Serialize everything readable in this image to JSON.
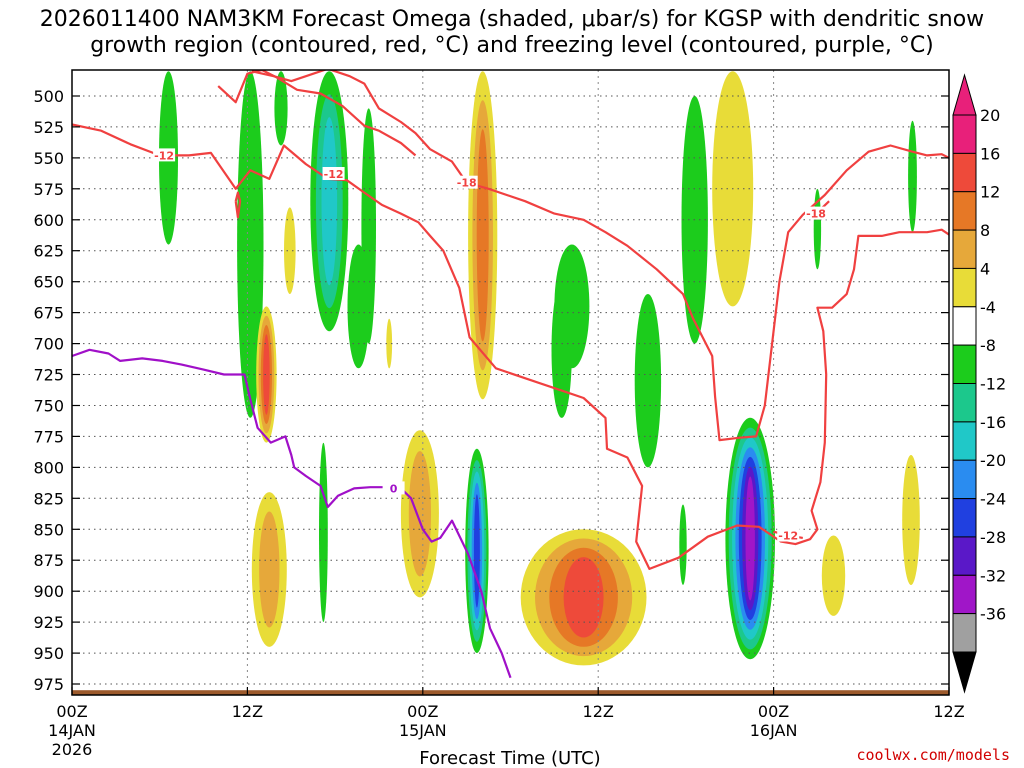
{
  "title_line1": "2026011400 NAM3KM Forecast Omega (shaded, μbar/s) for KGSP with dendritic snow",
  "title_line2": "growth region (contoured, red, °C) and freezing level (contoured, purple, °C)",
  "credit": "coolwx.com/models",
  "chart_data": {
    "type": "heatmap",
    "title": "2026011400 NAM3KM Forecast Omega (shaded, μbar/s) for KGSP with dendritic snow growth region (contoured, red, °C) and freezing level (contoured, purple, °C)",
    "xlabel": "Forecast Time (UTC)",
    "ylabel": "",
    "xlim": [
      0,
      60
    ],
    "ylim": [
      985,
      480
    ],
    "x_ticks": [
      {
        "hour": 0,
        "label": "00Z",
        "sub1": "14JAN",
        "sub2": "2026"
      },
      {
        "hour": 12,
        "label": "12Z",
        "sub1": "",
        "sub2": ""
      },
      {
        "hour": 24,
        "label": "00Z",
        "sub1": "15JAN",
        "sub2": ""
      },
      {
        "hour": 36,
        "label": "12Z",
        "sub1": "",
        "sub2": ""
      },
      {
        "hour": 48,
        "label": "00Z",
        "sub1": "16JAN",
        "sub2": ""
      },
      {
        "hour": 60,
        "label": "12Z",
        "sub1": "",
        "sub2": ""
      }
    ],
    "y_ticks": [
      500,
      525,
      550,
      575,
      600,
      625,
      650,
      675,
      700,
      725,
      750,
      775,
      800,
      825,
      850,
      875,
      900,
      925,
      950,
      975
    ],
    "colorbar": {
      "labels": [
        "20",
        "16",
        "12",
        "8",
        "4",
        "-4",
        "-8",
        "-12",
        "-16",
        "-20",
        "-24",
        "-28",
        "-32",
        "-36"
      ],
      "bins": [
        {
          "lo": 20,
          "hi": 24,
          "color": "#e8207a"
        },
        {
          "lo": 16,
          "hi": 20,
          "color": "#ee4a3a"
        },
        {
          "lo": 12,
          "hi": 16,
          "color": "#e67826"
        },
        {
          "lo": 8,
          "hi": 12,
          "color": "#e6a83a"
        },
        {
          "lo": 4,
          "hi": 8,
          "color": "#e8dc38"
        },
        {
          "lo": -4,
          "hi": 4,
          "color": "#ffffff"
        },
        {
          "lo": -8,
          "hi": -4,
          "color": "#1ccc1c"
        },
        {
          "lo": -12,
          "hi": -8,
          "color": "#1cc88c"
        },
        {
          "lo": -16,
          "hi": -12,
          "color": "#20c8c8"
        },
        {
          "lo": -20,
          "hi": -16,
          "color": "#2a8cf0"
        },
        {
          "lo": -24,
          "hi": -20,
          "color": "#2040e0"
        },
        {
          "lo": -28,
          "hi": -24,
          "color": "#5a18c8"
        },
        {
          "lo": -32,
          "hi": -28,
          "color": "#a016c8"
        },
        {
          "lo": -36,
          "hi": -32,
          "color": "#a0a0a0"
        }
      ],
      "colors": {
        "bottom_arrow": "#000000",
        "top_arrow": "#e8207a"
      }
    },
    "omega_regions": [
      {
        "name": "ascent-14jan-06z",
        "hour": 6.6,
        "p_top": 480,
        "p_bottom": 620,
        "width_h": 1.3,
        "levels": [
          -4
        ]
      },
      {
        "name": "ascent-14jan-12z-upper",
        "hour": 12.2,
        "p_top": 480,
        "p_bottom": 760,
        "width_h": 1.8,
        "levels": [
          -4
        ]
      },
      {
        "name": "ascent-14jan-15z",
        "hour": 14.3,
        "p_top": 480,
        "p_bottom": 540,
        "width_h": 0.9,
        "levels": [
          -4
        ]
      },
      {
        "name": "ascent-14jan-18z",
        "hour": 17.6,
        "p_top": 480,
        "p_bottom": 690,
        "width_h": 2.6,
        "levels": [
          -4,
          -8,
          -12
        ]
      },
      {
        "name": "ascent-14jan-20z",
        "hour": 20.3,
        "p_top": 510,
        "p_bottom": 700,
        "width_h": 1.0,
        "levels": [
          -4
        ]
      },
      {
        "name": "ascent-14jan-22z",
        "hour": 19.6,
        "p_top": 620,
        "p_bottom": 720,
        "width_h": 1.5,
        "levels": [
          -4
        ]
      },
      {
        "name": "descent-14jan-13z",
        "hour": 13.3,
        "p_top": 670,
        "p_bottom": 780,
        "width_h": 1.4,
        "levels": [
          4,
          8,
          12,
          16
        ]
      },
      {
        "name": "descent-14jan-13z-low",
        "hour": 13.5,
        "p_top": 820,
        "p_bottom": 945,
        "width_h": 2.4,
        "levels": [
          4,
          8
        ]
      },
      {
        "name": "descent-14jan-15z",
        "hour": 14.9,
        "p_top": 590,
        "p_bottom": 660,
        "width_h": 0.8,
        "levels": [
          4
        ]
      },
      {
        "name": "descent-14jan-21z",
        "hour": 21.7,
        "p_top": 680,
        "p_bottom": 720,
        "width_h": 0.4,
        "levels": [
          4
        ]
      },
      {
        "name": "ascent-14jan-17z-low",
        "hour": 17.2,
        "p_top": 780,
        "p_bottom": 925,
        "width_h": 0.6,
        "levels": [
          -4
        ]
      },
      {
        "name": "descent-15jan-00z",
        "hour": 23.8,
        "p_top": 770,
        "p_bottom": 905,
        "width_h": 2.6,
        "levels": [
          4,
          8
        ]
      },
      {
        "name": "descent-15jan-04z",
        "hour": 28.1,
        "p_top": 480,
        "p_bottom": 745,
        "width_h": 2.0,
        "levels": [
          4,
          8,
          12
        ]
      },
      {
        "name": "ascent-15jan-05z-low",
        "hour": 27.7,
        "p_top": 785,
        "p_bottom": 950,
        "width_h": 1.6,
        "levels": [
          -4,
          -8,
          -12,
          -16,
          -20
        ]
      },
      {
        "name": "descent-15jan-12z",
        "hour": 35.0,
        "p_top": 850,
        "p_bottom": 960,
        "width_h": 8.6,
        "levels": [
          4,
          8,
          12,
          16
        ]
      },
      {
        "name": "ascent-15jan-10z",
        "hour": 34.2,
        "p_top": 620,
        "p_bottom": 720,
        "width_h": 2.4,
        "levels": [
          -4
        ]
      },
      {
        "name": "ascent-15jan-10z-mid",
        "hour": 33.5,
        "p_top": 650,
        "p_bottom": 760,
        "width_h": 1.4,
        "levels": [
          -4
        ]
      },
      {
        "name": "ascent-15jan-15z",
        "hour": 39.4,
        "p_top": 660,
        "p_bottom": 800,
        "width_h": 1.8,
        "levels": [
          -4
        ]
      },
      {
        "name": "ascent-15jan-19z",
        "hour": 42.6,
        "p_top": 500,
        "p_bottom": 700,
        "width_h": 1.8,
        "levels": [
          -4
        ]
      },
      {
        "name": "descent-15jan-22z",
        "hour": 45.2,
        "p_top": 480,
        "p_bottom": 670,
        "width_h": 2.8,
        "levels": [
          4
        ]
      },
      {
        "name": "ascent-15jan-23z-low",
        "hour": 46.4,
        "p_top": 760,
        "p_bottom": 955,
        "width_h": 3.4,
        "levels": [
          -4,
          -8,
          -12,
          -16,
          -20,
          -24,
          -28
        ]
      },
      {
        "name": "ascent-15jan-18z-low",
        "hour": 41.8,
        "p_top": 830,
        "p_bottom": 895,
        "width_h": 0.5,
        "levels": [
          -4
        ]
      },
      {
        "name": "ascent-16jan-03z",
        "hour": 51.0,
        "p_top": 575,
        "p_bottom": 640,
        "width_h": 0.5,
        "levels": [
          -4
        ]
      },
      {
        "name": "descent-16jan-04z",
        "hour": 52.1,
        "p_top": 855,
        "p_bottom": 920,
        "width_h": 1.6,
        "levels": [
          4
        ]
      },
      {
        "name": "ascent-16jan-09z",
        "hour": 57.5,
        "p_top": 520,
        "p_bottom": 610,
        "width_h": 0.6,
        "levels": [
          -4
        ]
      },
      {
        "name": "descent-16jan-09z",
        "hour": 57.4,
        "p_top": 790,
        "p_bottom": 895,
        "width_h": 1.2,
        "levels": [
          4
        ]
      }
    ],
    "terrain": {
      "surface_pressure_mb": 980,
      "color": "#9c5a2c"
    },
    "contours": [
      {
        "name": "dgz-minus-12-west",
        "color": "#f04040",
        "label": "-12",
        "label_point": [
          6.3,
          548
        ],
        "points": [
          [
            0,
            523
          ],
          [
            2,
            528
          ],
          [
            4,
            539
          ],
          [
            6,
            548
          ],
          [
            8,
            548
          ],
          [
            9.5,
            546
          ],
          [
            11.2,
            575
          ],
          [
            12.2,
            560
          ],
          [
            13.5,
            567
          ],
          [
            14.5,
            540
          ],
          [
            16.0,
            555
          ],
          [
            17.5,
            567
          ],
          [
            18.8,
            568
          ],
          [
            20.0,
            578
          ],
          [
            21.2,
            588
          ],
          [
            22.5,
            595
          ],
          [
            23.7,
            602
          ],
          [
            24.5,
            613
          ],
          [
            25.4,
            625
          ],
          [
            26.5,
            655
          ],
          [
            27.2,
            695
          ],
          [
            29.0,
            720
          ],
          [
            31.5,
            730
          ],
          [
            33.5,
            738
          ],
          [
            35.0,
            744
          ],
          [
            36.5,
            760
          ],
          [
            36.6,
            785
          ],
          [
            38.0,
            792
          ],
          [
            39.0,
            815
          ],
          [
            38.6,
            860
          ],
          [
            39.5,
            882
          ],
          [
            41.5,
            873
          ],
          [
            43.5,
            856
          ],
          [
            45.5,
            847
          ],
          [
            47.0,
            848
          ],
          [
            48.5,
            860
          ],
          [
            49.5,
            862
          ],
          [
            50.5,
            858
          ],
          [
            51.0,
            850
          ],
          [
            50.6,
            835
          ],
          [
            51.2,
            812
          ],
          [
            51.5,
            780
          ],
          [
            51.6,
            725
          ],
          [
            51.4,
            690
          ],
          [
            51.0,
            671
          ],
          [
            52.0,
            671
          ],
          [
            53.0,
            660
          ],
          [
            53.5,
            640
          ],
          [
            53.8,
            613
          ],
          [
            55.4,
            613
          ],
          [
            56.6,
            610
          ],
          [
            58.5,
            610
          ],
          [
            59.5,
            608
          ],
          [
            60.0,
            612
          ]
        ]
      },
      {
        "name": "dgz-minus-18",
        "color": "#f04040",
        "label": "-18",
        "label_point": [
          27.0,
          570
        ],
        "points": [
          [
            12.3,
            480
          ],
          [
            13.8,
            484
          ],
          [
            15.0,
            488
          ],
          [
            16.0,
            484
          ],
          [
            17.5,
            478
          ],
          [
            19.0,
            484
          ],
          [
            20.0,
            490
          ],
          [
            21.0,
            510
          ],
          [
            22.5,
            521
          ],
          [
            23.5,
            530
          ],
          [
            24.5,
            543
          ],
          [
            26.0,
            553
          ],
          [
            27.0,
            570
          ],
          [
            28.5,
            575
          ],
          [
            31.0,
            585
          ],
          [
            33.0,
            595
          ],
          [
            35.0,
            600
          ],
          [
            36.5,
            610
          ],
          [
            38.0,
            621
          ],
          [
            40.0,
            640
          ],
          [
            41.8,
            660
          ],
          [
            42.5,
            680
          ],
          [
            43.8,
            710
          ],
          [
            44.0,
            743
          ],
          [
            44.3,
            778
          ],
          [
            45.7,
            776
          ],
          [
            46.8,
            775
          ],
          [
            47.4,
            750
          ],
          [
            47.9,
            700
          ],
          [
            48.4,
            650
          ],
          [
            49.0,
            610
          ],
          [
            50.0,
            596
          ],
          [
            51.5,
            580
          ],
          [
            53.0,
            560
          ],
          [
            54.5,
            545
          ],
          [
            56.0,
            540
          ],
          [
            57.5,
            545
          ],
          [
            58.5,
            548
          ],
          [
            59.5,
            547
          ],
          [
            60.0,
            550
          ]
        ]
      },
      {
        "name": "dgz-minus-12-upper",
        "color": "#f04040",
        "label": "-12",
        "label_point": [
          17.9,
          563
        ],
        "points": [
          [
            10.0,
            492
          ],
          [
            11.2,
            505
          ],
          [
            12.0,
            482
          ],
          [
            13.0,
            479
          ],
          [
            14.0,
            485
          ],
          [
            15.4,
            495
          ],
          [
            17.0,
            498
          ],
          [
            18.5,
            508
          ],
          [
            20.0,
            524
          ],
          [
            21.0,
            528
          ],
          [
            22.5,
            538
          ],
          [
            23.5,
            548
          ]
        ]
      },
      {
        "name": "dgz-minus-12-east",
        "color": "#f04040",
        "label": "-12",
        "label_point": [
          49.0,
          855
        ],
        "points": [
          [
            48.0,
            852
          ],
          [
            49.0,
            855
          ],
          [
            50.0,
            857
          ]
        ]
      },
      {
        "name": "dgz-minus-18-east",
        "color": "#f04040",
        "label": "-18",
        "label_point": [
          50.9,
          595
        ],
        "points": [
          [
            50.2,
            596
          ],
          [
            51.0,
            594
          ],
          [
            51.8,
            585
          ]
        ]
      },
      {
        "name": "dgz-minus-12-blob",
        "color": "#f04040",
        "label": "",
        "label_point": [
          0,
          0
        ],
        "points": [
          [
            11.2,
            585
          ],
          [
            11.35,
            578
          ],
          [
            11.5,
            585
          ],
          [
            11.35,
            598
          ],
          [
            11.2,
            585
          ]
        ]
      },
      {
        "name": "freezing-level-0c",
        "color": "#a010c8",
        "label": "0",
        "label_point": [
          22.0,
          817
        ],
        "points": [
          [
            0,
            710
          ],
          [
            1.2,
            705
          ],
          [
            2.5,
            708
          ],
          [
            3.3,
            714
          ],
          [
            4.8,
            712
          ],
          [
            6.2,
            714
          ],
          [
            7.5,
            717
          ],
          [
            9.0,
            721
          ],
          [
            10.4,
            725
          ],
          [
            11.8,
            725
          ],
          [
            12.2,
            745
          ],
          [
            12.7,
            768
          ],
          [
            13.6,
            780
          ],
          [
            14.6,
            775
          ],
          [
            15.0,
            790
          ],
          [
            15.2,
            800
          ],
          [
            16.0,
            807
          ],
          [
            17.0,
            815
          ],
          [
            17.5,
            832
          ],
          [
            18.2,
            823
          ],
          [
            19.3,
            817
          ],
          [
            20.4,
            816
          ],
          [
            21.5,
            816
          ],
          [
            22.5,
            817
          ],
          [
            23.2,
            825
          ],
          [
            24.0,
            850
          ],
          [
            24.6,
            860
          ],
          [
            25.2,
            857
          ],
          [
            26.0,
            843
          ],
          [
            27.1,
            870
          ],
          [
            28.0,
            900
          ],
          [
            28.6,
            930
          ],
          [
            29.4,
            950
          ],
          [
            30.0,
            970
          ]
        ]
      }
    ]
  }
}
